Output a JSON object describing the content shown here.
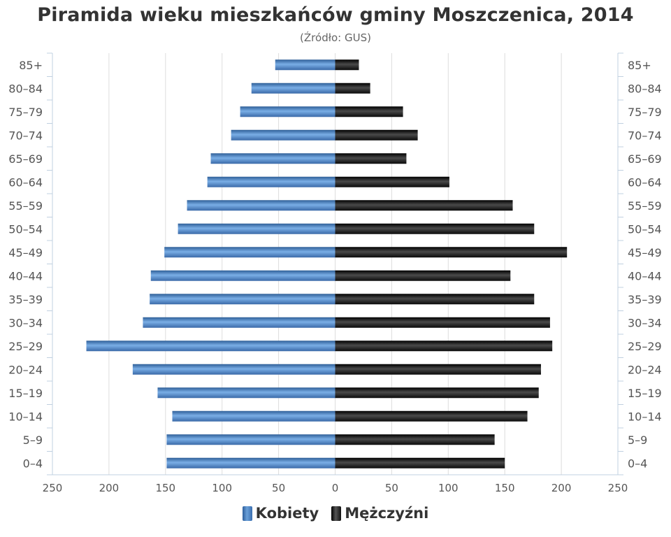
{
  "title": "Piramida wieku mieszkańców gminy Moszczenica, 2014",
  "subtitle": "(Źródło: GUS)",
  "colors": {
    "women": "#4a7fc1",
    "men": "#1a1a1a",
    "grid": "#dddddd",
    "axis": "#c0d0e0"
  },
  "chart_data": {
    "type": "bar",
    "orientation": "horizontal-population-pyramid",
    "categories": [
      "85+",
      "80–84",
      "75–79",
      "70–74",
      "65–69",
      "60–64",
      "55–59",
      "50–54",
      "45–49",
      "40–44",
      "35–39",
      "30–34",
      "25–29",
      "20–24",
      "15–19",
      "10–14",
      "5–9",
      "0–4"
    ],
    "series": [
      {
        "name": "Kobiety",
        "side": "left",
        "values": [
          53,
          74,
          84,
          92,
          110,
          113,
          131,
          139,
          151,
          163,
          164,
          170,
          220,
          179,
          157,
          144,
          149,
          149
        ]
      },
      {
        "name": "Mężczyźni",
        "side": "right",
        "values": [
          21,
          31,
          60,
          73,
          63,
          101,
          157,
          176,
          205,
          155,
          176,
          190,
          192,
          182,
          180,
          170,
          141,
          150
        ]
      }
    ],
    "x_ticks": [
      "250",
      "200",
      "150",
      "100",
      "50",
      "0",
      "50",
      "100",
      "150",
      "200",
      "250"
    ],
    "xlim": [
      -250,
      250
    ],
    "grid": true,
    "legend_position": "bottom"
  },
  "legend": [
    {
      "label": "Kobiety",
      "key": "women"
    },
    {
      "label": "Mężczyźni",
      "key": "men"
    }
  ]
}
